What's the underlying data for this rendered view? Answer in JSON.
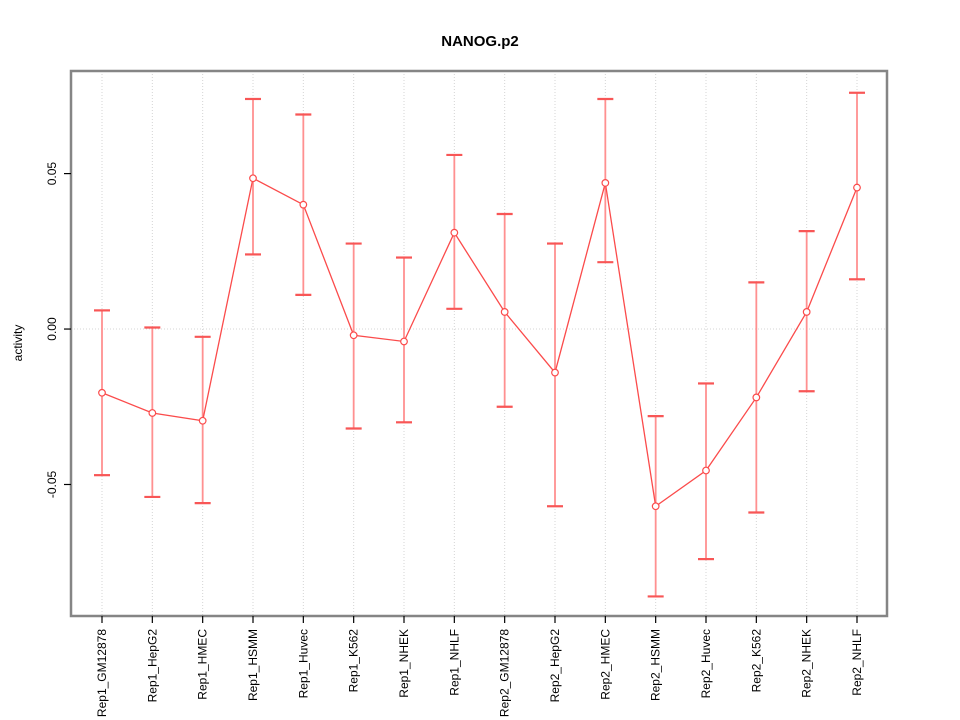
{
  "chart_data": {
    "type": "line",
    "title": "NANOG.p2",
    "xlabel": "",
    "ylabel": "activity",
    "categories": [
      "Rep1_GM12878",
      "Rep1_HepG2",
      "Rep1_HMEC",
      "Rep1_HSMM",
      "Rep1_Huvec",
      "Rep1_K562",
      "Rep1_NHEK",
      "Rep1_NHLF",
      "Rep2_GM12878",
      "Rep2_HepG2",
      "Rep2_HMEC",
      "Rep2_HSMM",
      "Rep2_Huvec",
      "Rep2_K562",
      "Rep2_NHEK",
      "Rep2_NHLF"
    ],
    "series": [
      {
        "name": "activity",
        "values": [
          -0.0205,
          -0.027,
          -0.0295,
          0.0485,
          0.04,
          -0.002,
          -0.004,
          0.031,
          0.0055,
          -0.014,
          0.047,
          -0.057,
          -0.0455,
          -0.022,
          0.0055,
          0.0455
        ],
        "err_hi": [
          0.006,
          0.0005,
          -0.0025,
          0.074,
          0.069,
          0.0275,
          0.023,
          0.056,
          0.037,
          0.0275,
          0.074,
          -0.028,
          -0.0175,
          0.015,
          0.0315,
          0.076
        ],
        "err_lo": [
          -0.047,
          -0.054,
          -0.056,
          0.024,
          0.011,
          -0.032,
          -0.03,
          0.0065,
          -0.025,
          -0.057,
          0.0215,
          -0.086,
          -0.074,
          -0.059,
          -0.02,
          0.016
        ]
      }
    ],
    "yticks": {
      "values": [
        0.05,
        0,
        -0.05
      ],
      "labels": [
        "0.05",
        "0.00",
        "-0.05"
      ]
    },
    "ylim": [
      -0.0923,
      0.083
    ],
    "grid": {
      "vertical": "dotted line at every category",
      "horizontal": "dotted line at y=0"
    },
    "legend": "none",
    "error_bars": true,
    "point_style": "open-circle",
    "x_label_rotation": -90,
    "colors": {
      "series_line": "#fb4b4b",
      "error_bar": "#ff9090",
      "error_bar_cap": "#f85656",
      "grid_line": "#d4d4d4",
      "plot_border": "#858585",
      "tick": "#000000",
      "text": "#000000",
      "background": "#ffffff"
    }
  }
}
